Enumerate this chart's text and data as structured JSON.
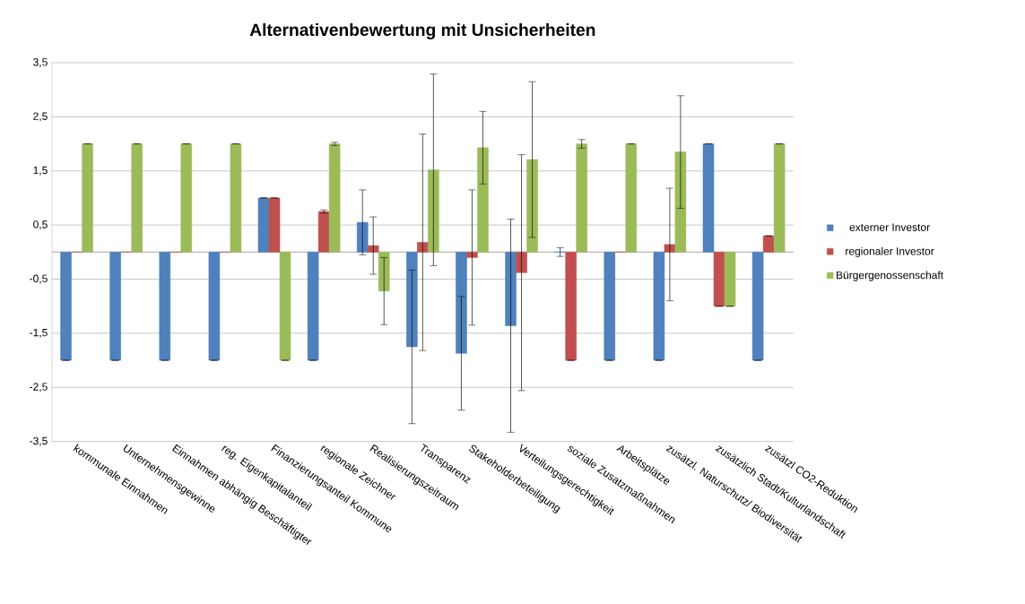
{
  "chart_data": {
    "type": "bar",
    "title": "Alternativenbewertung mit Unsicherheiten",
    "categories": [
      "kommunale Einnahmen",
      "Unternehmensgewinne",
      "Einnahmen abhängig Beschäftigter",
      "reg. Eigenkapitalanteil",
      "Finanzierungsanteil Kommune",
      "regionale Zeichner",
      "Realisierungszeitraum",
      "Transparenz",
      "Stakeholderbeteiligung",
      "Verteilungsgerechtigkeit",
      "soziale Zusatzmaßnahmen",
      "Arbeitsplätze",
      "zusätzl. Naturschutz/ Biodiversität",
      "zusätzlich Stadt/Kulturlandschaft",
      "zusätzl CO2-Reduktion"
    ],
    "series": [
      {
        "name": "externer Investor",
        "color": "#4f81bd",
        "values": [
          -2,
          -2,
          -2,
          -2,
          1,
          -2,
          0.55,
          -1.75,
          -1.87,
          -1.36,
          0,
          -2,
          -2,
          2,
          -2
        ],
        "errors": [
          0,
          0,
          0,
          0,
          0,
          0,
          0.6,
          1.42,
          1.05,
          1.97,
          0.08,
          0,
          0,
          0,
          0
        ]
      },
      {
        "name": "regionaler Investor",
        "color": "#c0504d",
        "values": [
          0,
          0,
          0,
          0,
          1,
          0.75,
          0.12,
          0.18,
          -0.1,
          -0.38,
          -2,
          0,
          0.14,
          -1,
          0.3
        ],
        "errors": [
          null,
          null,
          null,
          null,
          0,
          0.03,
          0.53,
          2.0,
          1.25,
          2.18,
          0,
          null,
          1.04,
          0,
          0
        ]
      },
      {
        "name": "Bürgergenossenschaft",
        "color": "#9bbb59",
        "values": [
          2,
          2,
          2,
          2,
          -2,
          2,
          -0.72,
          1.52,
          1.93,
          1.71,
          2,
          2,
          1.85,
          -1,
          2
        ],
        "errors": [
          0,
          0,
          0,
          0,
          0,
          0.03,
          0.62,
          1.77,
          0.67,
          1.44,
          0.08,
          0,
          1.04,
          0,
          0
        ]
      }
    ],
    "ylim": [
      -3.5,
      3.5
    ],
    "yticks": [
      {
        "value": -3.5,
        "label": "-3,5"
      },
      {
        "value": -2.5,
        "label": "-2,5"
      },
      {
        "value": -1.5,
        "label": "-1,5"
      },
      {
        "value": -0.5,
        "label": "-0,5"
      },
      {
        "value": 0.5,
        "label": "0,5"
      },
      {
        "value": 1.5,
        "label": "1,5"
      },
      {
        "value": 2.5,
        "label": "2,5"
      },
      {
        "value": 3.5,
        "label": "3,5"
      }
    ],
    "grid": "y",
    "legend": "right"
  }
}
